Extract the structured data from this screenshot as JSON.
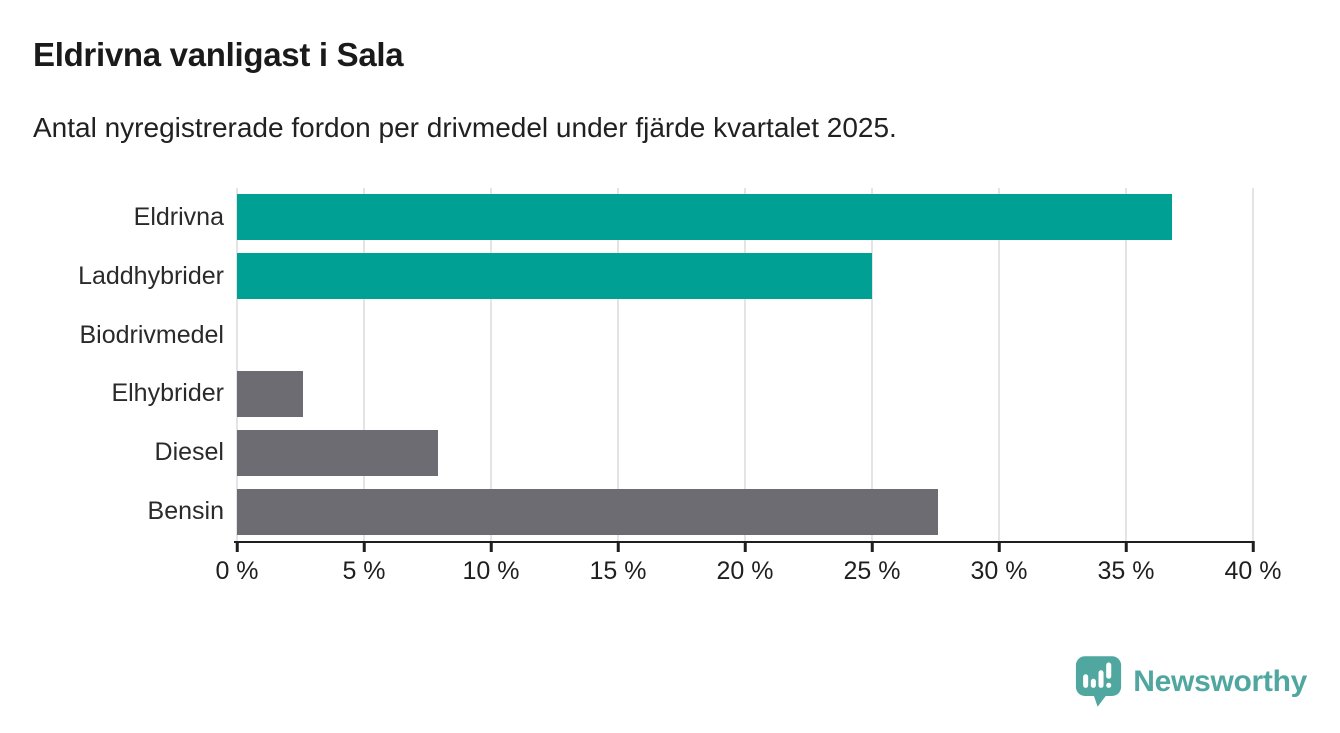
{
  "header": {
    "title": "Eldrivna vanligast i Sala",
    "subtitle": "Antal nyregistrerade fordon per drivmedel under fjärde kvartalet 2025."
  },
  "chart_data": {
    "type": "bar",
    "orientation": "horizontal",
    "title": "Eldrivna vanligast i Sala",
    "subtitle": "Antal nyregistrerade fordon per drivmedel under fjärde kvartalet 2025.",
    "categories": [
      "Eldrivna",
      "Laddhybrider",
      "Biodrivmedel",
      "Elhybrider",
      "Diesel",
      "Bensin"
    ],
    "values": [
      36.8,
      25.0,
      0,
      2.6,
      7.9,
      27.6
    ],
    "unit": "%",
    "xlim": [
      0,
      40
    ],
    "x_ticks": [
      0,
      5,
      10,
      15,
      20,
      25,
      30,
      35,
      40
    ],
    "x_tick_labels": [
      "0 %",
      "5 %",
      "10 %",
      "15 %",
      "20 %",
      "25 %",
      "30 %",
      "35 %",
      "40 %"
    ],
    "grid": true,
    "legend": "none",
    "bar_colors": [
      "#00a094",
      "#00a094",
      "#00a094",
      "#6c6c72",
      "#6c6c72",
      "#6c6c72"
    ],
    "colors": {
      "highlight": "#00a094",
      "default": "#6c6c72",
      "axis": "#1f1f1f",
      "gridline": "#e4e4e4"
    }
  },
  "branding": {
    "logo_text": "Newsworthy",
    "logo_icon": "newsworthy-speech-bubble-bar-chart-icon",
    "logo_color": "#4fa7a0"
  }
}
